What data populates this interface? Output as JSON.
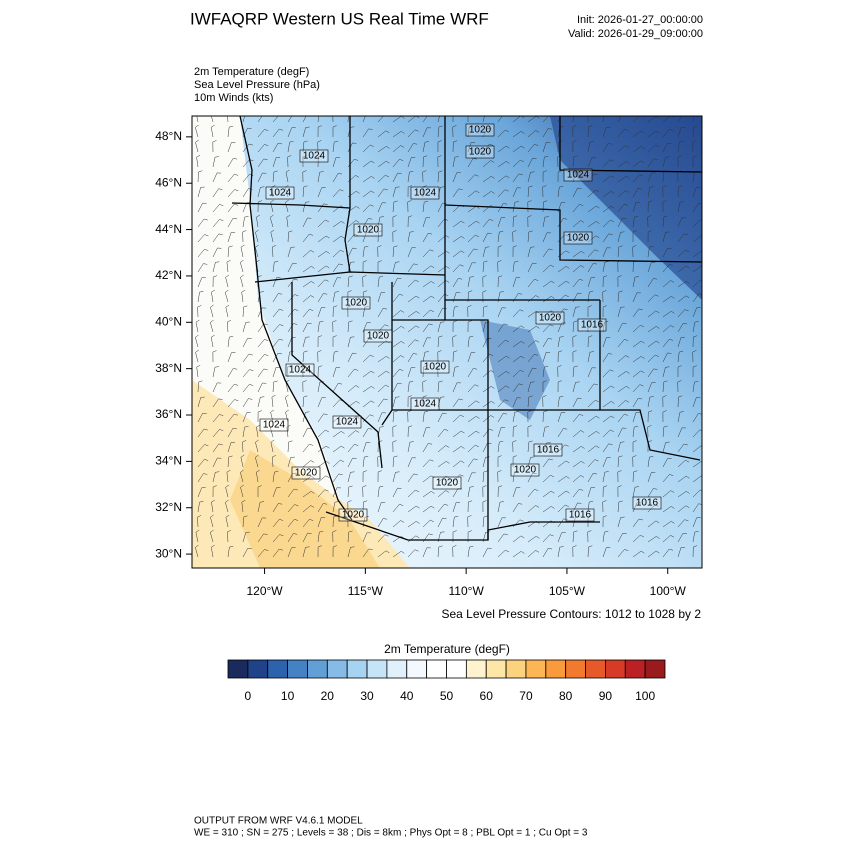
{
  "header": {
    "title": "IWFAQRP Western US Real Time WRF",
    "init": "Init: 2026-01-27_00:00:00",
    "valid": "Valid: 2026-01-29_09:00:00"
  },
  "fields": [
    "2m Temperature   (degF)",
    "Sea Level Pressure   (hPa)",
    "10m Winds   (kts)"
  ],
  "map": {
    "xlim": [
      -123.6,
      -98.3
    ],
    "ylim": [
      29.4,
      48.9
    ],
    "xticks": [
      {
        "value": -120,
        "label": "120°W"
      },
      {
        "value": -115,
        "label": "115°W"
      },
      {
        "value": -110,
        "label": "110°W"
      },
      {
        "value": -105,
        "label": "105°W"
      },
      {
        "value": -100,
        "label": "100°W"
      }
    ],
    "yticks": [
      {
        "value": 30,
        "label": "30°N"
      },
      {
        "value": 32,
        "label": "32°N"
      },
      {
        "value": 34,
        "label": "34°N"
      },
      {
        "value": 36,
        "label": "36°N"
      },
      {
        "value": 38,
        "label": "38°N"
      },
      {
        "value": 40,
        "label": "40°N"
      },
      {
        "value": 42,
        "label": "42°N"
      },
      {
        "value": 44,
        "label": "44°N"
      },
      {
        "value": 46,
        "label": "46°N"
      },
      {
        "value": 48,
        "label": "48°N"
      }
    ],
    "contour_labels": [
      "1020",
      "1020",
      "1024",
      "1024",
      "1024",
      "1024",
      "1020",
      "1020",
      "1020",
      "1020",
      "1016",
      "1020",
      "1020",
      "1024",
      "1024",
      "1024",
      "1024",
      "1016",
      "1020",
      "1020",
      "1020",
      "1020",
      "1016",
      "1016"
    ],
    "contour_note": "Sea Level Pressure Contours: 1012 to 1028 by 2"
  },
  "colorbar": {
    "title": "2m Temperature  (degF)",
    "lim": [
      -5,
      105
    ],
    "ticks": [
      0,
      10,
      20,
      30,
      40,
      50,
      60,
      70,
      80,
      90,
      100
    ],
    "colors": [
      "#1b2a5c",
      "#1f4288",
      "#2d63ad",
      "#4482c4",
      "#619fd6",
      "#85bbe6",
      "#a7d3f2",
      "#c6e4f8",
      "#e0f1fc",
      "#f3f9fe",
      "#ffffff",
      "#ffffff",
      "#fff3cf",
      "#fee6a6",
      "#fdd27e",
      "#fcb655",
      "#f99a3c",
      "#f27a2f",
      "#e65a2a",
      "#d53b27",
      "#ba2024",
      "#991b1e"
    ]
  },
  "footer": [
    "OUTPUT FROM WRF V4.6.1 MODEL",
    "WE = 310 ; SN = 275 ; Levels = 38 ; Dis = 8km ; Phys Opt = 8 ; PBL Opt = 1 ; Cu Opt = 3"
  ]
}
